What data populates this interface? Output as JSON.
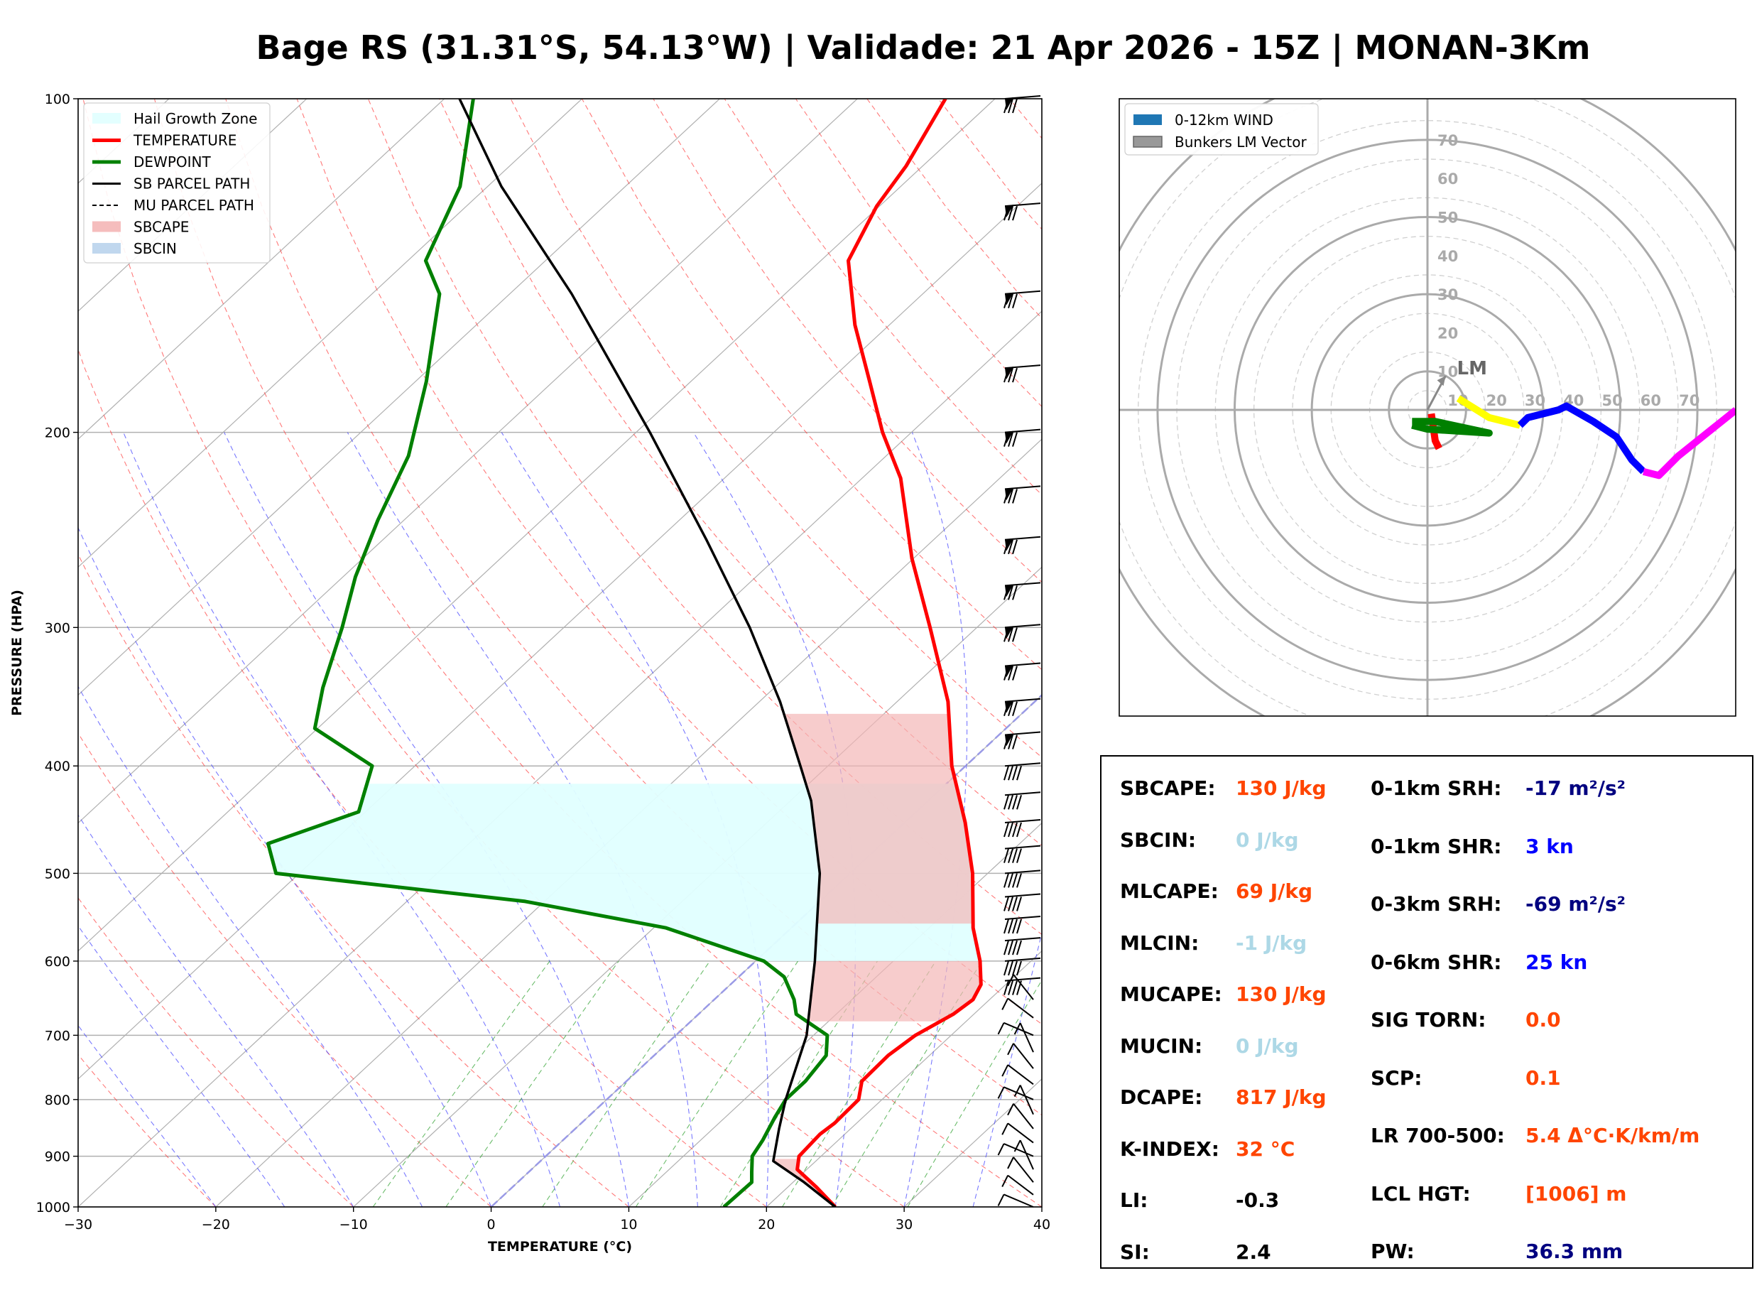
{
  "title": "Bage RS (31.31°S, 54.13°W) | Validade: 21 Apr 2026 - 15Z | MONAN-3Km",
  "chart_data": [
    {
      "type": "line",
      "subtype": "skew-t",
      "xlabel": "TEMPERATURE (°C)",
      "ylabel": "PRESSURE (HPA)",
      "xlim": [
        -30,
        40
      ],
      "ylim": [
        1000,
        100
      ],
      "y_scale": "log",
      "skew_deg_per_decade": 86.6,
      "x_ticks": [
        -30,
        -20,
        -10,
        0,
        10,
        20,
        30,
        40
      ],
      "x_tick_labels": [
        "−30",
        "−20",
        "−10",
        "0",
        "10",
        "20",
        "30",
        "40"
      ],
      "y_ticks": [
        100,
        200,
        300,
        400,
        500,
        600,
        700,
        800,
        900,
        1000
      ],
      "y_tick_labels": [
        "100",
        "200",
        "300",
        "400",
        "500",
        "600",
        "700",
        "800",
        "900",
        "1000"
      ],
      "legend": {
        "location": "upper-left",
        "entries": [
          {
            "label": "Hail Growth Zone",
            "color": "#e0ffff",
            "style": "patch"
          },
          {
            "label": "TEMPERATURE",
            "color": "#ff0000",
            "style": "line"
          },
          {
            "label": "DEWPOINT",
            "color": "#008000",
            "style": "line"
          },
          {
            "label": "SB PARCEL PATH",
            "color": "#000000",
            "style": "line"
          },
          {
            "label": "MU PARCEL PATH",
            "color": "#000000",
            "style": "dash"
          },
          {
            "label": "SBCAPE",
            "color": "#f4b6b6",
            "style": "patch"
          },
          {
            "label": "SBCIN",
            "color": "#b9d3ec",
            "style": "patch"
          }
        ]
      },
      "series": [
        {
          "name": "TEMPERATURE",
          "color": "#ff0000",
          "points": [
            [
              1000,
              25
            ],
            [
              960,
              22.1
            ],
            [
              925,
              19.3
            ],
            [
              900,
              18.4
            ],
            [
              860,
              18.2
            ],
            [
              840,
              18.4
            ],
            [
              800,
              18.3
            ],
            [
              770,
              17.1
            ],
            [
              730,
              17.0
            ],
            [
              700,
              17.4
            ],
            [
              670,
              18.5
            ],
            [
              650,
              18.8
            ],
            [
              630,
              18.2
            ],
            [
              600,
              16.3
            ],
            [
              560,
              13.2
            ],
            [
              500,
              8.9
            ],
            [
              450,
              4.4
            ],
            [
              400,
              -1.0
            ],
            [
              350,
              -6.3
            ],
            [
              300,
              -13.4
            ],
            [
              260,
              -20.1
            ],
            [
              220,
              -27.2
            ],
            [
              200,
              -32.1
            ],
            [
              180,
              -37.0
            ],
            [
              160,
              -42.5
            ],
            [
              140,
              -48.0
            ],
            [
              125,
              -50.2
            ],
            [
              115,
              -51.2
            ],
            [
              106,
              -52.6
            ],
            [
              100,
              -53.6
            ]
          ]
        },
        {
          "name": "DEWPOINT",
          "color": "#008000",
          "points": [
            [
              1000,
              16.9
            ],
            [
              950,
              17.0
            ],
            [
              930,
              16.2
            ],
            [
              900,
              15.0
            ],
            [
              870,
              14.5
            ],
            [
              830,
              13.6
            ],
            [
              800,
              13.0
            ],
            [
              770,
              13.0
            ],
            [
              730,
              12.5
            ],
            [
              700,
              11.0
            ],
            [
              670,
              7.1
            ],
            [
              650,
              5.8
            ],
            [
              620,
              3.3
            ],
            [
              600,
              0.6
            ],
            [
              560,
              -9.1
            ],
            [
              530,
              -21.4
            ],
            [
              500,
              -41.7
            ],
            [
              470,
              -44.6
            ],
            [
              440,
              -40.5
            ],
            [
              400,
              -43.1
            ],
            [
              370,
              -50.2
            ],
            [
              340,
              -52.8
            ],
            [
              300,
              -56.1
            ],
            [
              270,
              -59.1
            ],
            [
              240,
              -61.9
            ],
            [
              210,
              -64.7
            ],
            [
              180,
              -69.2
            ],
            [
              150,
              -75.1
            ],
            [
              140,
              -78.7
            ],
            [
              120,
              -82.0
            ],
            [
              100,
              -87.9
            ]
          ]
        },
        {
          "name": "SB PARCEL PATH",
          "color": "#000000",
          "points": [
            [
              1000,
              25
            ],
            [
              950,
              20.8
            ],
            [
              909,
              16.9
            ],
            [
              850,
              14.8
            ],
            [
              800,
              13.0
            ],
            [
              700,
              9.5
            ],
            [
              600,
              4.3
            ],
            [
              500,
              -2.2
            ],
            [
              430,
              -8.5
            ],
            [
              400,
              -12.0
            ],
            [
              350,
              -18.5
            ],
            [
              300,
              -26.5
            ],
            [
              250,
              -36.5
            ],
            [
              200,
              -49.0
            ],
            [
              150,
              -65.5
            ],
            [
              120,
              -79.0
            ],
            [
              100,
              -88.9
            ]
          ]
        }
      ],
      "fills": [
        {
          "name": "Hail Growth Zone",
          "color": "#e0ffff"
        },
        {
          "name": "SBCAPE",
          "color": "#f4b6b6"
        }
      ],
      "wind_barb_levels_hpa": [
        1000,
        975,
        950,
        925,
        900,
        875,
        850,
        825,
        800,
        775,
        750,
        725,
        700,
        675,
        650,
        625,
        600,
        575,
        550,
        525,
        500,
        475,
        450,
        425,
        400,
        375,
        350,
        325,
        300,
        275,
        250,
        225,
        200,
        175,
        150,
        125,
        100
      ]
    },
    {
      "type": "line",
      "subtype": "hodograph",
      "rings_kn": [
        10,
        20,
        30,
        40,
        50,
        60,
        70
      ],
      "ring_labels": [
        "10",
        "20",
        "30",
        "40",
        "50",
        "60",
        "70"
      ],
      "axis_labels": [
        "10",
        "20",
        "30",
        "40",
        "50",
        "60",
        "70"
      ],
      "legend": {
        "location": "upper-left",
        "entries": [
          {
            "label": "0-12km WIND",
            "color": "#1f77b4",
            "style": "patch"
          },
          {
            "label": "Bunkers LM Vector",
            "color": "#999999",
            "style": "patch"
          }
        ]
      },
      "lm_label": "LM",
      "bunkers_lm_vector_kn": [
        4.7,
        8.8
      ],
      "segments": [
        {
          "color": "#ff0000",
          "points": [
            [
              1,
              -1
            ],
            [
              2,
              -8
            ],
            [
              3,
              -10
            ]
          ]
        },
        {
          "color": "#008000",
          "points": [
            [
              -4,
              -4
            ],
            [
              0,
              -5
            ],
            [
              16,
              -6
            ],
            [
              2,
              -3
            ],
            [
              -4,
              -3
            ]
          ]
        },
        {
          "color": "#ffff00",
          "points": [
            [
              8,
              3
            ],
            [
              16,
              -2
            ],
            [
              24,
              -4
            ]
          ]
        },
        {
          "color": "#0000ff",
          "points": [
            [
              24,
              -4
            ],
            [
              26,
              -2
            ],
            [
              34,
              0
            ],
            [
              36,
              1
            ],
            [
              43,
              -3
            ],
            [
              49,
              -7
            ],
            [
              53,
              -13
            ],
            [
              56,
              -16
            ]
          ]
        },
        {
          "color": "#ff00ff",
          "points": [
            [
              56,
              -16
            ],
            [
              60,
              -17
            ],
            [
              65,
              -12
            ],
            [
              80,
              0
            ]
          ]
        }
      ]
    }
  ],
  "params": {
    "left": [
      {
        "label": "SBCAPE:",
        "value": "130 J/kg",
        "color": "#ff4500"
      },
      {
        "label": "SBCIN:",
        "value": "0 J/kg",
        "color": "#add8e6"
      },
      {
        "label": "MLCAPE:",
        "value": "69 J/kg",
        "color": "#ff4500"
      },
      {
        "label": "MLCIN:",
        "value": "-1 J/kg",
        "color": "#add8e6"
      },
      {
        "label": "MUCAPE:",
        "value": "130 J/kg",
        "color": "#ff4500"
      },
      {
        "label": "MUCIN:",
        "value": "0 J/kg",
        "color": "#add8e6"
      },
      {
        "label": "DCAPE:",
        "value": "817 J/kg",
        "color": "#ff4500"
      },
      {
        "label": "K-INDEX:",
        "value": "32 °C",
        "color": "#ff4500"
      },
      {
        "label": "LI:",
        "value": "-0.3",
        "color": "#000000"
      },
      {
        "label": "SI:",
        "value": "2.4",
        "color": "#000000"
      }
    ],
    "right": [
      {
        "label": "0-1km SRH:",
        "value": "-17 m²/s²",
        "color": "#000080"
      },
      {
        "label": "0-1km SHR:",
        "value": "3 kn",
        "color": "#0000ff"
      },
      {
        "label": "0-3km SRH:",
        "value": "-69 m²/s²",
        "color": "#000080"
      },
      {
        "label": "0-6km SHR:",
        "value": "25 kn",
        "color": "#0000ff"
      },
      {
        "label": "SIG TORN:",
        "value": "0.0",
        "color": "#ff4500"
      },
      {
        "label": "SCP:",
        "value": "0.1",
        "color": "#ff4500"
      },
      {
        "label": "LR 700-500:",
        "value": "5.4 Δ°C·K/km/m",
        "color": "#ff4500"
      },
      {
        "label": "LCL HGT:",
        "value": "[1006] m",
        "color": "#ff4500"
      },
      {
        "label": "PW:",
        "value": "36.3 mm",
        "color": "#000080"
      }
    ]
  }
}
